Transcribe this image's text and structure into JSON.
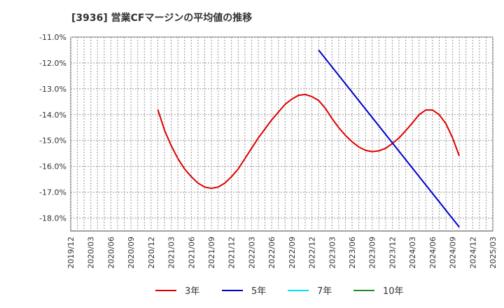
{
  "chart_data": {
    "type": "line",
    "title": "[3936]  営業CFマージンの平均値の推移",
    "xlabel": "",
    "ylabel": "",
    "ylim": [
      -18.5,
      -11.0
    ],
    "y_ticks": [
      -11.0,
      -12.0,
      -13.0,
      -14.0,
      -15.0,
      -16.0,
      -17.0,
      -18.0
    ],
    "y_tick_labels": [
      "-11.0%",
      "-12.0%",
      "-13.0%",
      "-14.0%",
      "-15.0%",
      "-16.0%",
      "-17.0%",
      "-18.0%"
    ],
    "x_tick_labels": [
      "2019/12",
      "2020/03",
      "2020/06",
      "2020/09",
      "2020/12",
      "2021/03",
      "2021/06",
      "2021/09",
      "2021/12",
      "2022/03",
      "2022/06",
      "2022/09",
      "2022/12",
      "2023/03",
      "2023/06",
      "2023/09",
      "2023/12",
      "2024/03",
      "2024/06",
      "2024/09",
      "2024/12",
      "2025/03"
    ],
    "grid": true,
    "legend_position": "bottom",
    "series": [
      {
        "name": "3年",
        "color": "#dd0000",
        "points": [
          [
            "2021/01",
            -13.8
          ],
          [
            "2021/02",
            -14.6
          ],
          [
            "2021/03",
            -15.2
          ],
          [
            "2021/04",
            -15.7
          ],
          [
            "2021/05",
            -16.1
          ],
          [
            "2021/06",
            -16.4
          ],
          [
            "2021/07",
            -16.65
          ],
          [
            "2021/08",
            -16.8
          ],
          [
            "2021/09",
            -16.85
          ],
          [
            "2021/10",
            -16.8
          ],
          [
            "2021/11",
            -16.65
          ],
          [
            "2021/12",
            -16.4
          ],
          [
            "2022/01",
            -16.1
          ],
          [
            "2022/02",
            -15.7
          ],
          [
            "2022/03",
            -15.3
          ],
          [
            "2022/04",
            -14.9
          ],
          [
            "2022/05",
            -14.55
          ],
          [
            "2022/06",
            -14.2
          ],
          [
            "2022/07",
            -13.9
          ],
          [
            "2022/08",
            -13.6
          ],
          [
            "2022/09",
            -13.4
          ],
          [
            "2022/10",
            -13.25
          ],
          [
            "2022/11",
            -13.22
          ],
          [
            "2022/12",
            -13.3
          ],
          [
            "2023/01",
            -13.45
          ],
          [
            "2023/02",
            -13.75
          ],
          [
            "2023/03",
            -14.15
          ],
          [
            "2023/04",
            -14.5
          ],
          [
            "2023/05",
            -14.8
          ],
          [
            "2023/06",
            -15.05
          ],
          [
            "2023/07",
            -15.25
          ],
          [
            "2023/08",
            -15.38
          ],
          [
            "2023/09",
            -15.43
          ],
          [
            "2023/10",
            -15.4
          ],
          [
            "2023/11",
            -15.3
          ],
          [
            "2023/12",
            -15.12
          ],
          [
            "2024/01",
            -14.9
          ],
          [
            "2024/02",
            -14.62
          ],
          [
            "2024/03",
            -14.32
          ],
          [
            "2024/04",
            -14.0
          ],
          [
            "2024/05",
            -13.82
          ],
          [
            "2024/06",
            -13.82
          ],
          [
            "2024/07",
            -14.0
          ],
          [
            "2024/08",
            -14.35
          ],
          [
            "2024/09",
            -14.9
          ],
          [
            "2024/10",
            -15.6
          ]
        ]
      },
      {
        "name": "5年",
        "color": "#0000cc",
        "points": [
          [
            "2023/01",
            -11.5
          ],
          [
            "2024/10",
            -18.35
          ]
        ]
      },
      {
        "name": "7年",
        "color": "#00e5ee",
        "points": []
      },
      {
        "name": "10年",
        "color": "#228b22",
        "points": []
      }
    ]
  }
}
